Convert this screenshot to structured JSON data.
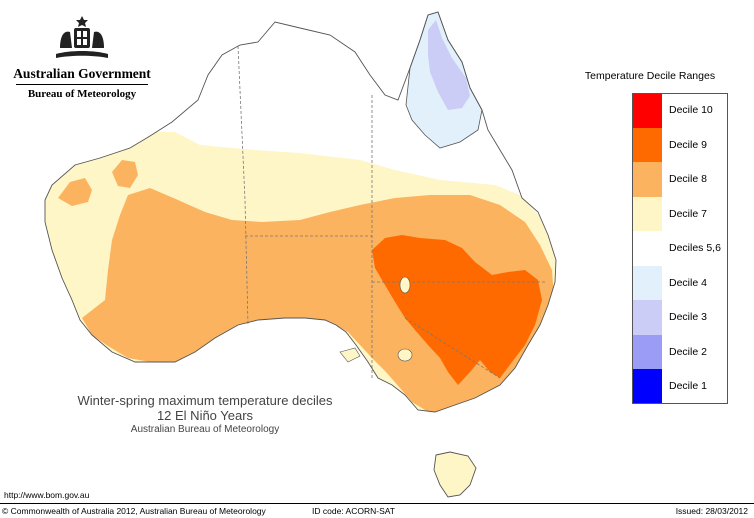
{
  "header": {
    "government": "Australian Government",
    "bureau": "Bureau of Meteorology"
  },
  "legend": {
    "title": "Temperature Decile Ranges",
    "items": [
      {
        "label": "Decile 10",
        "color": "#ff0000"
      },
      {
        "label": "Decile 9",
        "color": "#ff6a00"
      },
      {
        "label": "Decile 8",
        "color": "#fbb35f"
      },
      {
        "label": "Decile 7",
        "color": "#fef6c6"
      },
      {
        "label": "Deciles 5,6",
        "color": "#ffffff"
      },
      {
        "label": "Decile 4",
        "color": "#e2f0fb"
      },
      {
        "label": "Decile 3",
        "color": "#cccdf7"
      },
      {
        "label": "Decile 2",
        "color": "#9a9cf5"
      },
      {
        "label": "Decile 1",
        "color": "#0000ff"
      }
    ]
  },
  "map": {
    "colors": {
      "coast": "#555555",
      "border": "#777777",
      "decile_8": "#fbb35f",
      "decile_9": "#ff6a00",
      "decile_7": "#fef6c6",
      "decile_4": "#e2f0fb",
      "decile_3": "#cccdf7"
    }
  },
  "caption": {
    "line1": "Winter-spring maximum temperature deciles",
    "line2": "12 El Niño Years",
    "line3": "Australian Bureau of Meteorology"
  },
  "footer": {
    "url": "http://www.bom.gov.au",
    "copyright": "© Commonwealth of Australia 2012, Australian Bureau of Meteorology",
    "id_code": "ID code: ACORN-SAT",
    "issued": "Issued: 28/03/2012"
  }
}
